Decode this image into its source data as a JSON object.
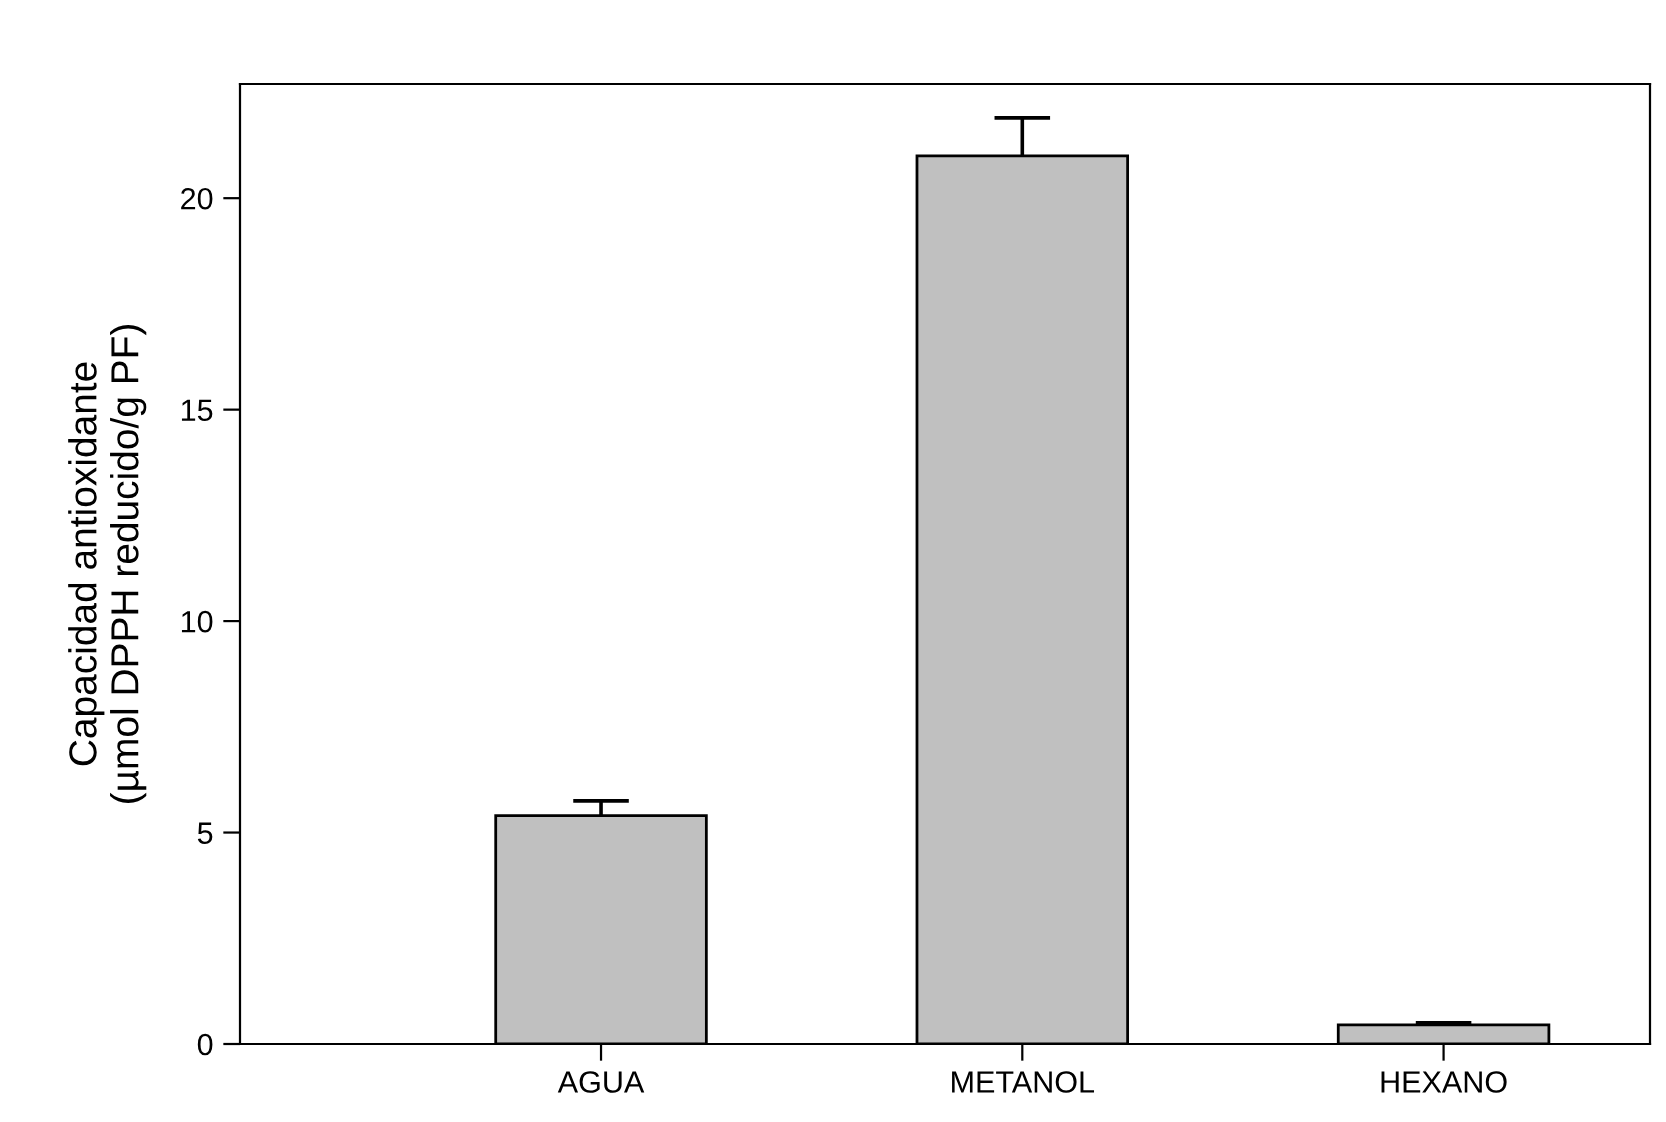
{
  "chart_data": {
    "type": "bar",
    "ylabel": "Capacidad antioxidante\n(µmol DPPH reducido/g PF)",
    "categories": [
      "AGUA",
      "METANOL",
      "HEXANO"
    ],
    "values": [
      5.4,
      21.0,
      0.45
    ],
    "errors": [
      [
        5.4,
        5.75
      ],
      [
        21.0,
        21.9
      ],
      [
        0.45,
        0.5
      ]
    ],
    "color": "#c0c0c0",
    "ylim": [
      0,
      22.7
    ],
    "yticks": [
      0,
      5,
      10,
      15,
      20
    ],
    "grid": false
  }
}
